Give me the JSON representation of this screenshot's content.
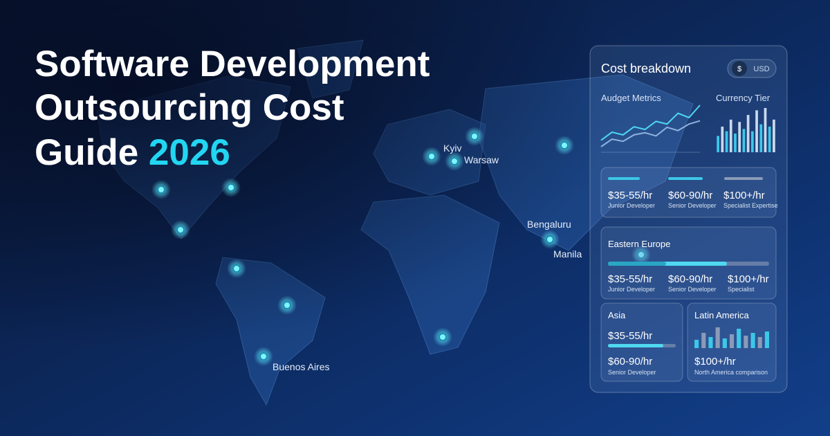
{
  "header": {
    "title_lines": [
      "Software Development",
      "Outsourcing Cost"
    ],
    "title_last": "Guide",
    "title_highlight": "2026"
  },
  "map": {
    "cities": [
      "Kyiv",
      "Warsaw",
      "Bengaluru",
      "Manila",
      "Buenos Aires"
    ]
  },
  "panel": {
    "title": "Cost breakdown",
    "toggle": [
      "$",
      "USD"
    ],
    "metrics": {
      "label": "Audget Metrics",
      "series": [
        {
          "color": "#4fd8f0",
          "values": [
            20,
            35,
            30,
            45,
            40,
            55,
            50,
            70,
            62,
            85
          ]
        },
        {
          "color": "#8fb3e0",
          "values": [
            8,
            22,
            18,
            30,
            34,
            28,
            44,
            38,
            50,
            56
          ]
        }
      ]
    },
    "tier": {
      "label": "Currency Tier",
      "colors": [
        "#3cc8e8",
        "#c9d8ee"
      ],
      "values": [
        35,
        55,
        45,
        70,
        40,
        65,
        50,
        80,
        45,
        90,
        60,
        95,
        55,
        70
      ]
    },
    "rates": [
      {
        "rate": "$35-55/hr",
        "role": "Junior Developer"
      },
      {
        "rate": "$60-90/hr",
        "role": "Senior Developer"
      },
      {
        "rate": "$100+/hr",
        "role": "Specialist Expertise"
      }
    ],
    "eastern_europe": {
      "title": "Eastern Europe",
      "rates": [
        {
          "rate": "$35-55/hr",
          "role": "Junior Developer"
        },
        {
          "rate": "$60-90/hr",
          "role": "Senior Developer"
        },
        {
          "rate": "$100+/hr",
          "role": "Specialist"
        }
      ]
    },
    "asia": {
      "title": "Asia",
      "rate_1": "$35-55/hr",
      "rate_2": "$60-90/hr",
      "role_2": "Senior Developer"
    },
    "latin_america": {
      "title": "Latin America",
      "colors": [
        "#3cc8e8",
        "#8a9bb8"
      ],
      "values": [
        30,
        55,
        40,
        75,
        35,
        50,
        70,
        45,
        55,
        40,
        60
      ],
      "rate": "$100+/hr",
      "note": "North America comparison"
    }
  }
}
